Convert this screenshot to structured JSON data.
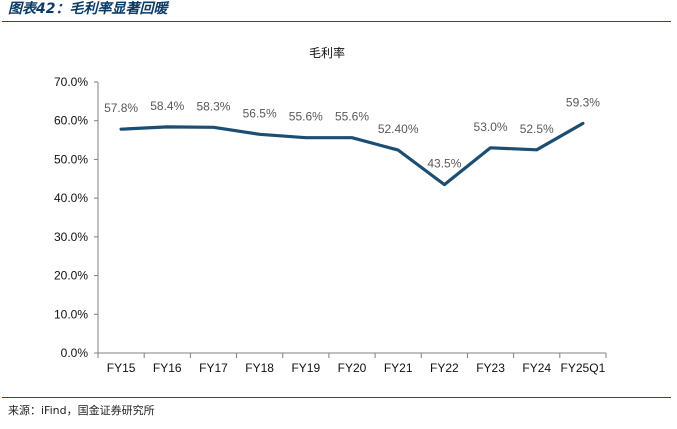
{
  "figure": {
    "header": "图表42：毛利率显著回暖",
    "source": "来源：iFind，国金证券研究所"
  },
  "chart_data": {
    "type": "line",
    "title": "毛利率",
    "xlabel": "",
    "ylabel": "",
    "ylim": [
      0,
      70
    ],
    "yticks": [
      "0.0%",
      "10.0%",
      "20.0%",
      "30.0%",
      "40.0%",
      "50.0%",
      "60.0%",
      "70.0%"
    ],
    "categories": [
      "FY15",
      "FY16",
      "FY17",
      "FY18",
      "FY19",
      "FY20",
      "FY21",
      "FY22",
      "FY23",
      "FY24",
      "FY25Q1"
    ],
    "series": [
      {
        "name": "毛利率",
        "values": [
          57.8,
          58.4,
          58.3,
          56.5,
          55.6,
          55.6,
          52.4,
          43.5,
          53.0,
          52.5,
          59.3
        ],
        "labels": [
          "57.8%",
          "58.4%",
          "58.3%",
          "56.5%",
          "55.6%",
          "55.6%",
          "52.40%",
          "43.5%",
          "53.0%",
          "52.5%",
          "59.3%"
        ],
        "color": "#1b4e72"
      }
    ],
    "grid": false,
    "legend": "none"
  }
}
